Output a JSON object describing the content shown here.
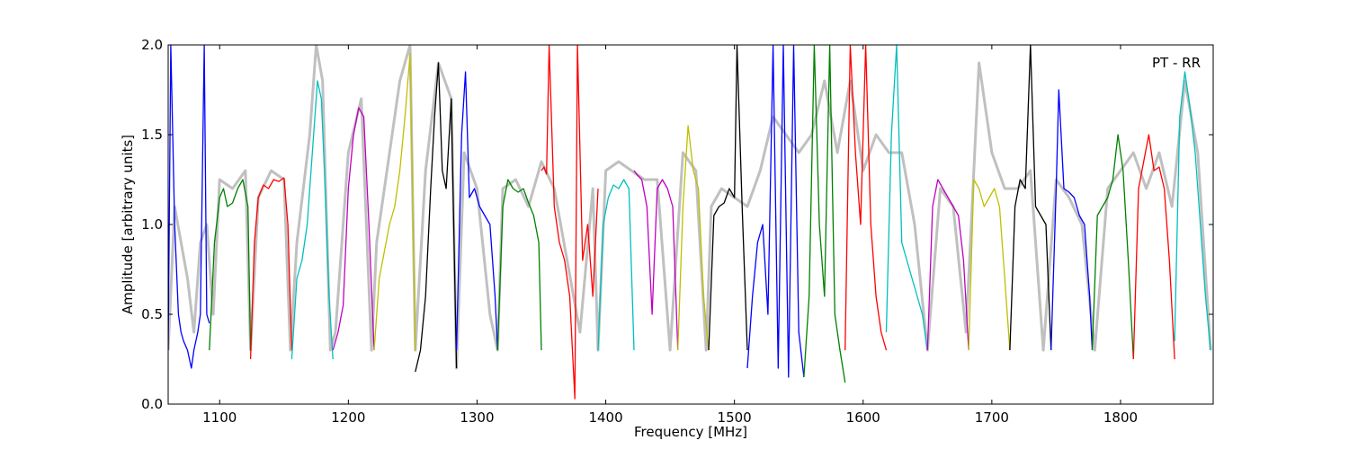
{
  "chart_data": {
    "type": "line",
    "title": "",
    "annotation": "PT - RR",
    "xlabel": "Frequency [MHz]",
    "ylabel": "Amplitude [arbitrary units]",
    "xlim": [
      1060,
      1872
    ],
    "ylim": [
      0.0,
      2.0
    ],
    "xticks": [
      1100,
      1200,
      1300,
      1400,
      1500,
      1600,
      1700,
      1800
    ],
    "yticks": [
      0.0,
      0.5,
      1.0,
      1.5,
      2.0
    ],
    "ytick_labels": [
      "0.0",
      "0.5",
      "1.0",
      "1.5",
      "2.0"
    ],
    "grid": false,
    "series": [
      {
        "color": "#c0c0c0",
        "x": [
          1060,
          1065,
          1070,
          1075,
          1080,
          1085,
          1090,
          1095,
          1100,
          1110,
          1120,
          1124,
          1130,
          1140,
          1150,
          1155,
          1160,
          1170,
          1175,
          1180,
          1186,
          1190,
          1200,
          1210,
          1218,
          1222,
          1230,
          1240,
          1248,
          1252,
          1260,
          1270,
          1280,
          1284,
          1290,
          1300,
          1310,
          1316,
          1320,
          1330,
          1340,
          1350,
          1360,
          1370,
          1380,
          1390,
          1394,
          1400,
          1410,
          1420,
          1430,
          1440,
          1450,
          1460,
          1470,
          1478,
          1482,
          1490,
          1500,
          1510,
          1520,
          1530,
          1540,
          1550,
          1560,
          1570,
          1580,
          1590,
          1600,
          1610,
          1620,
          1630,
          1640,
          1650,
          1660,
          1670,
          1680,
          1690,
          1700,
          1710,
          1720,
          1730,
          1740,
          1750,
          1760,
          1770,
          1780,
          1790,
          1800,
          1810,
          1820,
          1830,
          1840,
          1850,
          1860,
          1870
        ],
        "y": [
          0.3,
          1.1,
          0.9,
          0.7,
          0.4,
          0.9,
          1.0,
          0.5,
          1.25,
          1.2,
          1.3,
          0.3,
          1.15,
          1.3,
          1.25,
          0.3,
          0.9,
          1.5,
          2.0,
          1.8,
          0.3,
          0.4,
          1.4,
          1.7,
          0.3,
          0.9,
          1.3,
          1.8,
          2.0,
          0.3,
          1.3,
          1.9,
          1.7,
          0.2,
          1.4,
          1.2,
          0.5,
          0.3,
          1.2,
          1.25,
          1.1,
          1.35,
          1.2,
          0.8,
          0.4,
          1.2,
          0.3,
          1.3,
          1.35,
          1.3,
          1.25,
          1.25,
          0.3,
          1.4,
          1.3,
          0.3,
          1.1,
          1.2,
          1.15,
          1.1,
          1.3,
          1.6,
          1.5,
          1.4,
          1.5,
          1.8,
          1.4,
          1.8,
          1.3,
          1.5,
          1.4,
          1.4,
          1.0,
          0.3,
          1.2,
          1.1,
          0.4,
          1.9,
          1.4,
          1.2,
          1.2,
          1.3,
          0.3,
          1.25,
          1.15,
          1.0,
          0.3,
          1.2,
          1.3,
          1.4,
          1.2,
          1.4,
          1.1,
          1.8,
          1.4,
          0.3
        ]
      },
      {
        "color": "#0000ff",
        "x": [
          1060,
          1062,
          1065,
          1068,
          1070,
          1072,
          1075,
          1078,
          1080,
          1083,
          1085,
          1088,
          1090,
          1092
        ],
        "y": [
          0.3,
          2.0,
          1.0,
          0.5,
          0.4,
          0.35,
          0.3,
          0.2,
          0.3,
          0.4,
          0.5,
          2.0,
          0.5,
          0.45
        ]
      },
      {
        "color": "#008000",
        "x": [
          1092,
          1096,
          1100,
          1103,
          1106,
          1110,
          1114,
          1118,
          1122,
          1124
        ],
        "y": [
          0.3,
          0.9,
          1.15,
          1.2,
          1.1,
          1.12,
          1.2,
          1.25,
          1.1,
          0.3
        ]
      },
      {
        "color": "#ff0000",
        "x": [
          1124,
          1127,
          1130,
          1134,
          1138,
          1142,
          1146,
          1150,
          1153,
          1156
        ],
        "y": [
          0.25,
          0.9,
          1.15,
          1.22,
          1.2,
          1.25,
          1.24,
          1.26,
          1.0,
          0.3
        ]
      },
      {
        "color": "#00bfbf",
        "x": [
          1156,
          1160,
          1164,
          1168,
          1172,
          1176,
          1179,
          1182,
          1185,
          1188
        ],
        "y": [
          0.25,
          0.7,
          0.8,
          1.0,
          1.4,
          1.8,
          1.7,
          1.2,
          0.6,
          0.25
        ]
      },
      {
        "color": "#bf00bf",
        "x": [
          1188,
          1192,
          1196,
          1200,
          1204,
          1208,
          1212,
          1216,
          1220
        ],
        "y": [
          0.3,
          0.4,
          0.55,
          1.2,
          1.5,
          1.65,
          1.6,
          1.0,
          0.3
        ]
      },
      {
        "color": "#bfbf00",
        "x": [
          1220,
          1224,
          1228,
          1232,
          1236,
          1240,
          1244,
          1248,
          1252
        ],
        "y": [
          0.3,
          0.7,
          0.85,
          1.0,
          1.1,
          1.3,
          1.6,
          1.95,
          0.3
        ]
      },
      {
        "color": "#000000",
        "x": [
          1252,
          1256,
          1260,
          1264,
          1267,
          1270,
          1273,
          1276,
          1280,
          1284
        ],
        "y": [
          0.18,
          0.3,
          0.6,
          1.2,
          1.6,
          1.9,
          1.3,
          1.2,
          1.7,
          0.2
        ]
      },
      {
        "color": "#0000ff",
        "x": [
          1284,
          1288,
          1291,
          1294,
          1298,
          1302,
          1306,
          1310,
          1314,
          1316
        ],
        "y": [
          0.3,
          1.5,
          1.85,
          1.15,
          1.2,
          1.1,
          1.05,
          1.0,
          0.6,
          0.3
        ]
      },
      {
        "color": "#008000",
        "x": [
          1316,
          1320,
          1324,
          1328,
          1332,
          1336,
          1340,
          1344,
          1348,
          1350
        ],
        "y": [
          0.3,
          1.1,
          1.25,
          1.2,
          1.18,
          1.2,
          1.12,
          1.05,
          0.9,
          0.3
        ]
      },
      {
        "color": "#ff0000",
        "x": [
          1350,
          1352,
          1354,
          1356,
          1360,
          1364,
          1368,
          1372,
          1376,
          1378,
          1382,
          1386,
          1390,
          1394
        ],
        "y": [
          1.3,
          1.32,
          1.28,
          2.0,
          1.1,
          0.9,
          0.8,
          0.6,
          0.03,
          2.0,
          0.8,
          1.0,
          0.6,
          1.2
        ]
      },
      {
        "color": "#00bfbf",
        "x": [
          1394,
          1398,
          1402,
          1406,
          1410,
          1414,
          1418,
          1422
        ],
        "y": [
          0.3,
          1.0,
          1.15,
          1.22,
          1.2,
          1.25,
          1.2,
          0.3
        ]
      },
      {
        "color": "#bf00bf",
        "x": [
          1422,
          1424,
          1428,
          1432,
          1436,
          1440,
          1444,
          1448,
          1452,
          1456
        ],
        "y": [
          1.3,
          1.28,
          1.25,
          1.1,
          0.5,
          1.2,
          1.25,
          1.2,
          1.1,
          0.3
        ]
      },
      {
        "color": "#bfbf00",
        "x": [
          1456,
          1460,
          1464,
          1468,
          1472,
          1476,
          1480
        ],
        "y": [
          0.3,
          1.1,
          1.55,
          1.3,
          1.2,
          0.6,
          0.3
        ]
      },
      {
        "color": "#000000",
        "x": [
          1480,
          1484,
          1488,
          1492,
          1496,
          1500,
          1502,
          1506,
          1510
        ],
        "y": [
          0.3,
          1.05,
          1.1,
          1.12,
          1.2,
          1.15,
          2.0,
          1.1,
          0.3
        ]
      },
      {
        "color": "#0000ff",
        "x": [
          1510,
          1514,
          1518,
          1522,
          1526,
          1530,
          1534,
          1538,
          1542,
          1546,
          1550,
          1554
        ],
        "y": [
          0.2,
          0.6,
          0.9,
          1.0,
          0.5,
          2.0,
          0.2,
          2.0,
          0.15,
          2.0,
          0.4,
          0.15
        ]
      },
      {
        "color": "#008000",
        "x": [
          1554,
          1558,
          1562,
          1566,
          1570,
          1574,
          1578,
          1582,
          1586
        ],
        "y": [
          0.15,
          0.6,
          2.0,
          1.0,
          0.6,
          2.0,
          0.5,
          0.3,
          0.12
        ]
      },
      {
        "color": "#ff0000",
        "x": [
          1586,
          1590,
          1594,
          1598,
          1602,
          1606,
          1610,
          1614,
          1618
        ],
        "y": [
          0.3,
          2.0,
          1.4,
          1.0,
          2.0,
          1.0,
          0.6,
          0.4,
          0.3
        ]
      },
      {
        "color": "#00bfbf",
        "x": [
          1618,
          1622,
          1626,
          1630,
          1634,
          1638,
          1642,
          1646,
          1650
        ],
        "y": [
          0.4,
          1.5,
          2.0,
          0.9,
          0.8,
          0.7,
          0.6,
          0.5,
          0.3
        ]
      },
      {
        "color": "#bf00bf",
        "x": [
          1650,
          1654,
          1658,
          1662,
          1666,
          1670,
          1674,
          1678,
          1682
        ],
        "y": [
          0.3,
          1.1,
          1.25,
          1.2,
          1.15,
          1.1,
          1.05,
          0.8,
          0.3
        ]
      },
      {
        "color": "#bfbf00",
        "x": [
          1682,
          1686,
          1690,
          1694,
          1698,
          1702,
          1706,
          1710,
          1714
        ],
        "y": [
          0.3,
          1.25,
          1.2,
          1.1,
          1.15,
          1.2,
          1.1,
          0.7,
          0.3
        ]
      },
      {
        "color": "#000000",
        "x": [
          1714,
          1718,
          1722,
          1726,
          1730,
          1734,
          1738,
          1742,
          1746
        ],
        "y": [
          0.3,
          1.1,
          1.25,
          1.2,
          2.0,
          1.1,
          1.05,
          1.0,
          0.3
        ]
      },
      {
        "color": "#0000ff",
        "x": [
          1746,
          1750,
          1752,
          1756,
          1760,
          1764,
          1768,
          1772,
          1776,
          1778
        ],
        "y": [
          0.3,
          1.2,
          1.75,
          1.2,
          1.18,
          1.15,
          1.05,
          1.0,
          0.6,
          0.3
        ]
      },
      {
        "color": "#008000",
        "x": [
          1778,
          1782,
          1786,
          1790,
          1794,
          1798,
          1802,
          1806,
          1810
        ],
        "y": [
          0.3,
          1.05,
          1.1,
          1.15,
          1.25,
          1.5,
          1.3,
          0.8,
          0.25
        ]
      },
      {
        "color": "#ff0000",
        "x": [
          1810,
          1814,
          1818,
          1822,
          1826,
          1830,
          1834,
          1838,
          1842
        ],
        "y": [
          0.25,
          1.2,
          1.35,
          1.5,
          1.3,
          1.32,
          1.2,
          0.8,
          0.25
        ]
      },
      {
        "color": "#00bfbf",
        "x": [
          1842,
          1846,
          1850,
          1854,
          1858,
          1862,
          1866,
          1870
        ],
        "y": [
          0.35,
          1.6,
          1.85,
          1.65,
          1.4,
          1.0,
          0.6,
          0.3
        ]
      }
    ]
  }
}
